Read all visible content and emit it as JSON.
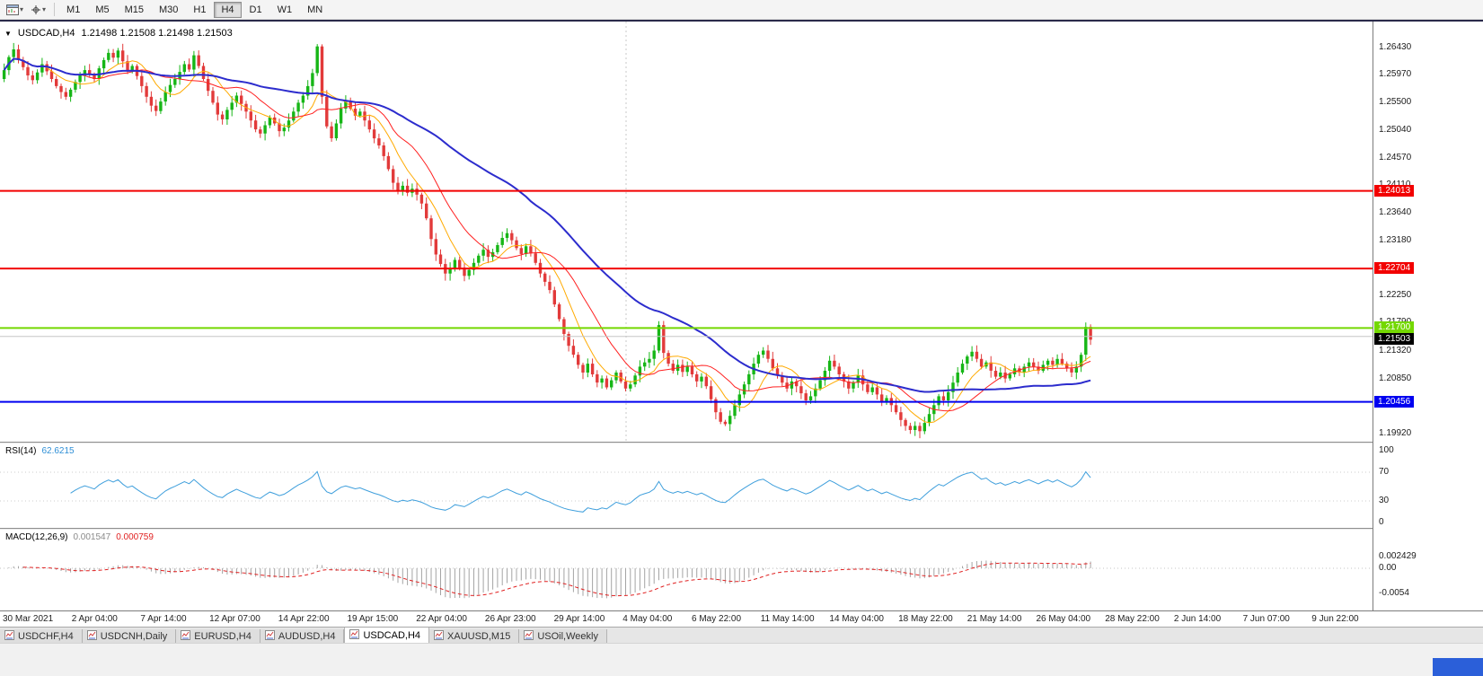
{
  "icons": {
    "collapse": "▼",
    "caret": "▾"
  },
  "toolbar": {
    "timeframes": [
      "M1",
      "M5",
      "M15",
      "M30",
      "H1",
      "H4",
      "D1",
      "W1",
      "MN"
    ],
    "active_timeframe": "H4"
  },
  "chart_data": {
    "type": "candlestick",
    "symbol_period": "USDCAD,H4",
    "ohlc_text": "1.21498 1.21508 1.21498 1.21503",
    "current_price": 1.21503,
    "current_price_text": "1.21503",
    "current_badge_bg": "#000000",
    "data_end_frac": 0.795,
    "separator_frac": 0.456,
    "colors": {
      "bull": "#16b616",
      "bear": "#e23a3a"
    },
    "y_axis_ticks": [
      "1.26430",
      "1.25970",
      "1.25500",
      "1.25040",
      "1.24570",
      "1.24110",
      "1.23640",
      "1.23180",
      "1.22720",
      "1.22250",
      "1.21790",
      "1.21320",
      "1.20850",
      "1.20390",
      "1.19920"
    ],
    "x_axis_labels": [
      "30 Mar 2021",
      "2 Apr 04:00",
      "7 Apr 14:00",
      "12 Apr 07:00",
      "14 Apr 22:00",
      "19 Apr 15:00",
      "22 Apr 04:00",
      "26 Apr 23:00",
      "29 Apr 14:00",
      "4 May 04:00",
      "6 May 22:00",
      "11 May 14:00",
      "14 May 04:00",
      "18 May 22:00",
      "21 May 14:00",
      "26 May 04:00",
      "28 May 22:00",
      "2 Jun 14:00",
      "7 Jun 07:00",
      "9 Jun 22:00"
    ],
    "horizontal_lines": [
      {
        "price": 1.24013,
        "label": "1.24013",
        "color": "#f20000",
        "label_text": "#ffffff",
        "width": 2
      },
      {
        "price": 1.22704,
        "label": "1.22704",
        "color": "#f20000",
        "label_text": "#ffffff",
        "width": 2
      },
      {
        "price": 1.217,
        "label": "1.21700",
        "color": "#74d800",
        "label_text": "#ffffff",
        "width": 2
      },
      {
        "price": 1.2156,
        "label": "",
        "color": "#c6c6c6",
        "label_text": "#000000",
        "width": 1
      },
      {
        "price": 1.20456,
        "label": "1.20456",
        "color": "#0000f0",
        "label_text": "#ffffff",
        "width": 2
      }
    ],
    "closes": [
      1.2605,
      1.2627,
      1.264,
      1.2622,
      1.261,
      1.2596,
      1.2588,
      1.2601,
      1.2615,
      1.2603,
      1.259,
      1.2578,
      1.2568,
      1.256,
      1.2572,
      1.2585,
      1.2596,
      1.2605,
      1.2598,
      1.259,
      1.2608,
      1.2622,
      1.2634,
      1.2626,
      1.2638,
      1.262,
      1.2605,
      1.2612,
      1.2595,
      1.2578,
      1.256,
      1.2545,
      1.2536,
      1.2552,
      1.2568,
      1.258,
      1.259,
      1.2602,
      1.2615,
      1.2606,
      1.263,
      1.2612,
      1.259,
      1.257,
      1.255,
      1.253,
      1.2522,
      1.2538,
      1.255,
      1.2562,
      1.2548,
      1.2535,
      1.252,
      1.2505,
      1.2498,
      1.2512,
      1.2525,
      1.2515,
      1.2502,
      1.2508,
      1.252,
      1.2535,
      1.255,
      1.2562,
      1.2578,
      1.26,
      1.2645,
      1.256,
      1.251,
      1.249,
      1.2515,
      1.254,
      1.2552,
      1.254,
      1.2528,
      1.2535,
      1.252,
      1.2505,
      1.249,
      1.2478,
      1.246,
      1.2438,
      1.2415,
      1.2402,
      1.241,
      1.2398,
      1.2405,
      1.2395,
      1.238,
      1.2355,
      1.232,
      1.2294,
      1.2278,
      1.2262,
      1.227,
      1.2285,
      1.2272,
      1.2258,
      1.2268,
      1.228,
      1.2292,
      1.2302,
      1.229,
      1.2298,
      1.231,
      1.2322,
      1.233,
      1.2318,
      1.2305,
      1.2295,
      1.2308,
      1.2296,
      1.228,
      1.2262,
      1.2248,
      1.2234,
      1.221,
      1.2185,
      1.216,
      1.214,
      1.2125,
      1.2108,
      1.2095,
      1.211,
      1.2092,
      1.2078,
      1.2085,
      1.207,
      1.2082,
      1.2095,
      1.208,
      1.2068,
      1.2075,
      1.209,
      1.2105,
      1.2112,
      1.2118,
      1.2132,
      1.2175,
      1.2128,
      1.211,
      1.2098,
      1.2108,
      1.2096,
      1.2105,
      1.2092,
      1.208,
      1.2088,
      1.2072,
      1.205,
      1.2028,
      1.2012,
      1.2008,
      1.2022,
      1.204,
      1.2058,
      1.2075,
      1.2092,
      1.211,
      1.2125,
      1.2132,
      1.2118,
      1.2102,
      1.209,
      1.2078,
      1.2068,
      1.208,
      1.2072,
      1.206,
      1.2048,
      1.2055,
      1.2068,
      1.2082,
      1.2098,
      1.2115,
      1.2105,
      1.2092,
      1.208,
      1.2068,
      1.2078,
      1.209,
      1.2075,
      1.2062,
      1.207,
      1.2058,
      1.2045,
      1.2052,
      1.204,
      1.2028,
      1.2015,
      1.2005,
      1.1998,
      1.2005,
      1.1996,
      1.201,
      1.2025,
      1.204,
      1.2055,
      1.2048,
      1.2062,
      1.2078,
      1.2095,
      1.211,
      1.2122,
      1.213,
      1.2118,
      1.2105,
      1.2112,
      1.2098,
      1.2088,
      1.2095,
      1.2085,
      1.2092,
      1.2102,
      1.2095,
      1.2105,
      1.2112,
      1.2105,
      1.2098,
      1.2108,
      1.2115,
      1.2108,
      1.2118,
      1.211,
      1.2102,
      1.2095,
      1.2105,
      1.2125,
      1.2172,
      1.21503
    ],
    "indicators": {
      "moving_averages": [
        {
          "period": 8,
          "color": "#ffaa00",
          "width": 1
        },
        {
          "period": 16,
          "color": "#ff2020",
          "width": 1
        },
        {
          "period": 45,
          "color": "#2c2ccd",
          "width": 2
        }
      ],
      "rsi": {
        "label_text": "RSI(14)",
        "value_text": "62.6215",
        "period": 14,
        "color": "#3f9fdc",
        "axis_labels": [
          "100",
          "70",
          "30",
          "0"
        ],
        "levels": [
          70,
          30
        ]
      },
      "macd": {
        "label_text": "MACD(12,26,9)",
        "main_value": "0.001547",
        "signal_value": "0.000759",
        "fast": 12,
        "slow": 26,
        "signal": 9,
        "hist_color": "#a4a4a4",
        "signal_color": "#e02020",
        "axis_labels": [
          "0.002429",
          "0.00",
          "-0.0054"
        ]
      }
    }
  },
  "tabs": {
    "items": [
      {
        "label": "USDCHF,H4",
        "active": false
      },
      {
        "label": "USDCNH,Daily",
        "active": false
      },
      {
        "label": "EURUSD,H4",
        "active": false
      },
      {
        "label": "AUDUSD,H4",
        "active": false
      },
      {
        "label": "USDCAD,H4",
        "active": true
      },
      {
        "label": "XAUUSD,M15",
        "active": false
      },
      {
        "label": "USOil,Weekly",
        "active": false
      }
    ]
  }
}
